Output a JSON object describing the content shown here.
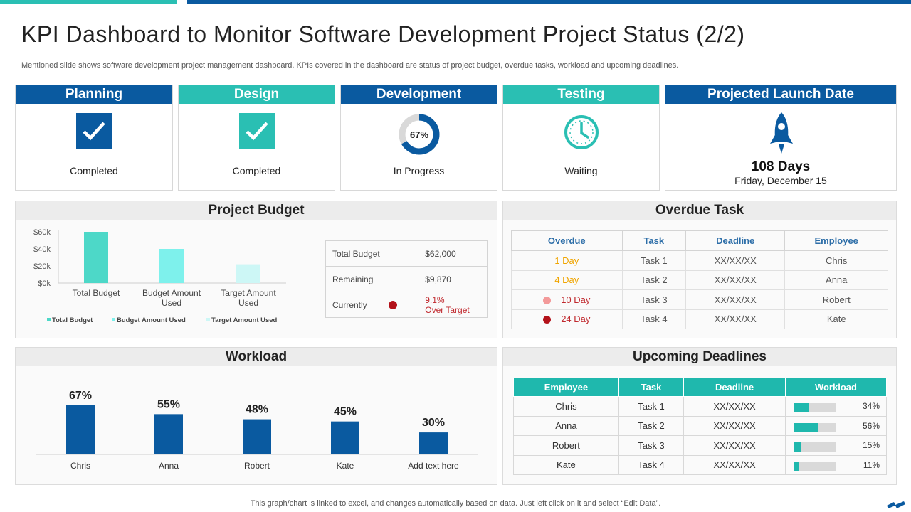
{
  "header": {
    "title": "KPI Dashboard to Monitor Software Development Project Status (2/2)",
    "subtitle": "Mentioned slide shows software development project management dashboard. KPIs covered in the dashboard are status of project budget, overdue tasks, workload and upcoming deadlines."
  },
  "phases": {
    "planning": {
      "label": "Planning",
      "status": "Completed",
      "icon": "check-icon"
    },
    "design": {
      "label": "Design",
      "status": "Completed",
      "icon": "check-icon"
    },
    "development": {
      "label": "Development",
      "status": "In Progress",
      "progress_label": "67%",
      "progress": 0.67
    },
    "testing": {
      "label": "Testing",
      "status": "Waiting",
      "icon": "clock-icon"
    },
    "launch": {
      "label": "Projected Launch Date",
      "days": "108 Days",
      "date": "Friday, December 15",
      "icon": "rocket-icon"
    }
  },
  "budget": {
    "title": "Project Budget",
    "table": {
      "total_label": "Total Budget",
      "total_value": "$62,000",
      "remaining_label": "Remaining",
      "remaining_value": "$9,870",
      "currently_label": "Currently",
      "currently_value": "9.1%",
      "currently_note": "Over Target"
    }
  },
  "overdue": {
    "title": "Overdue Task",
    "headers": [
      "Overdue",
      "Task",
      "Deadline",
      "Employee"
    ],
    "rows": [
      {
        "overdue": "1 Day",
        "task": "Task 1",
        "deadline": "XX/XX/XX",
        "employee": "Chris"
      },
      {
        "overdue": "4 Day",
        "task": "Task 2",
        "deadline": "XX/XX/XX",
        "employee": "Anna"
      },
      {
        "overdue": "10 Day",
        "task": "Task 3",
        "deadline": "XX/XX/XX",
        "employee": "Robert"
      },
      {
        "overdue": "24 Day",
        "task": "Task 4",
        "deadline": "XX/XX/XX",
        "employee": "Kate"
      }
    ],
    "colors": {
      "mild": "#f0a500",
      "medium": "#c0282d",
      "dot_medium": "#f39a9a",
      "dot_severe": "#b3121a"
    }
  },
  "upcoming": {
    "title": "Upcoming Deadlines",
    "headers": [
      "Employee",
      "Task",
      "Deadline",
      "Workload"
    ],
    "rows": [
      {
        "employee": "Chris",
        "task": "Task 1",
        "deadline": "XX/XX/XX",
        "workload_label": "34%",
        "workload": 0.34
      },
      {
        "employee": "Anna",
        "task": "Task 2",
        "deadline": "XX/XX/XX",
        "workload_label": "56%",
        "workload": 0.56
      },
      {
        "employee": "Robert",
        "task": "Task 3",
        "deadline": "XX/XX/XX",
        "workload_label": "15%",
        "workload": 0.15
      },
      {
        "employee": "Kate",
        "task": "Task 4",
        "deadline": "XX/XX/XX",
        "workload_label": "11%",
        "workload": 0.11
      }
    ]
  },
  "workload": {
    "title": "Workload"
  },
  "chart_data": [
    {
      "type": "bar",
      "title": "Project Budget",
      "categories": [
        "Total Budget",
        "Budget Amount Used",
        "Target Amount Used"
      ],
      "values": [
        62000,
        40000,
        22000
      ],
      "ylim": [
        0,
        60000
      ],
      "yticks": [
        "$60k",
        "$40k",
        "$20k",
        "$0k"
      ],
      "legend": [
        "Total Budget",
        "Budget Amount Used",
        "Target Amount Used"
      ],
      "legend_position": "bottom",
      "colors": [
        "#4dd8c8",
        "#7ef1ec",
        "#cdf7f6"
      ]
    },
    {
      "type": "bar",
      "title": "Workload",
      "categories": [
        "Chris",
        "Anna",
        "Robert",
        "Kate",
        "Add text here"
      ],
      "values": [
        67,
        55,
        48,
        45,
        30
      ],
      "labels": [
        "67%",
        "55%",
        "48%",
        "45%",
        "30%"
      ],
      "ylim": [
        0,
        100
      ],
      "color": "#0a5aa0"
    }
  ],
  "footer": {
    "note": "This graph/chart is linked to excel,  and changes automatically based on data. Just left click on it and select “Edit Data”."
  },
  "colors": {
    "primary": "#0a5aa0",
    "accent": "#2abfb3"
  }
}
